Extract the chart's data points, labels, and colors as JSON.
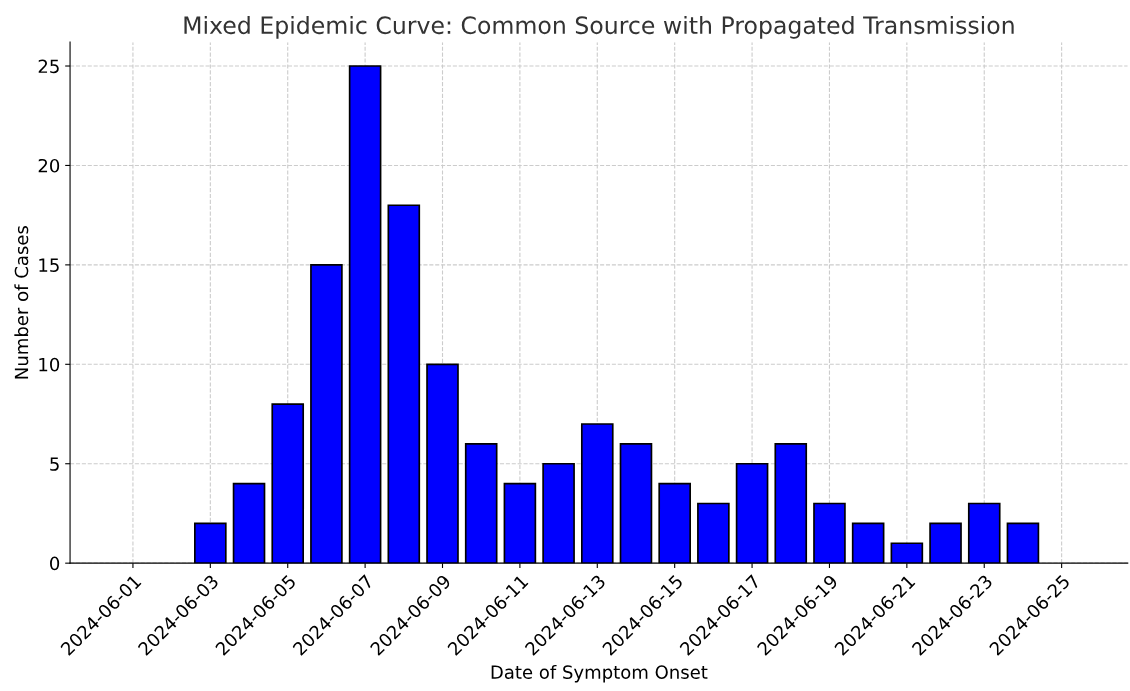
{
  "chart_data": {
    "type": "bar",
    "title": "Mixed Epidemic Curve: Common Source with Propagated Transmission",
    "xlabel": "Date of Symptom Onset",
    "ylabel": "Number of Cases",
    "x": [
      "2024-06-03",
      "2024-06-04",
      "2024-06-05",
      "2024-06-06",
      "2024-06-07",
      "2024-06-08",
      "2024-06-09",
      "2024-06-10",
      "2024-06-11",
      "2024-06-12",
      "2024-06-13",
      "2024-06-14",
      "2024-06-15",
      "2024-06-16",
      "2024-06-17",
      "2024-06-18",
      "2024-06-19",
      "2024-06-20",
      "2024-06-21",
      "2024-06-22",
      "2024-06-23",
      "2024-06-24"
    ],
    "values": [
      2,
      4,
      8,
      15,
      25,
      18,
      10,
      6,
      4,
      5,
      7,
      6,
      4,
      3,
      5,
      6,
      3,
      2,
      1,
      2,
      3,
      2
    ],
    "color": "#0000ff",
    "xlim": [
      "2024-05-30T09:00",
      "2024-06-26T17:00"
    ],
    "xticks": [
      "2024-06-01",
      "2024-06-03",
      "2024-06-05",
      "2024-06-07",
      "2024-06-09",
      "2024-06-11",
      "2024-06-13",
      "2024-06-15",
      "2024-06-17",
      "2024-06-19",
      "2024-06-21",
      "2024-06-23",
      "2024-06-25"
    ],
    "ylim": [
      0,
      26.2
    ],
    "yticks": [
      0,
      5,
      10,
      15,
      20,
      25
    ],
    "grid": true
  }
}
